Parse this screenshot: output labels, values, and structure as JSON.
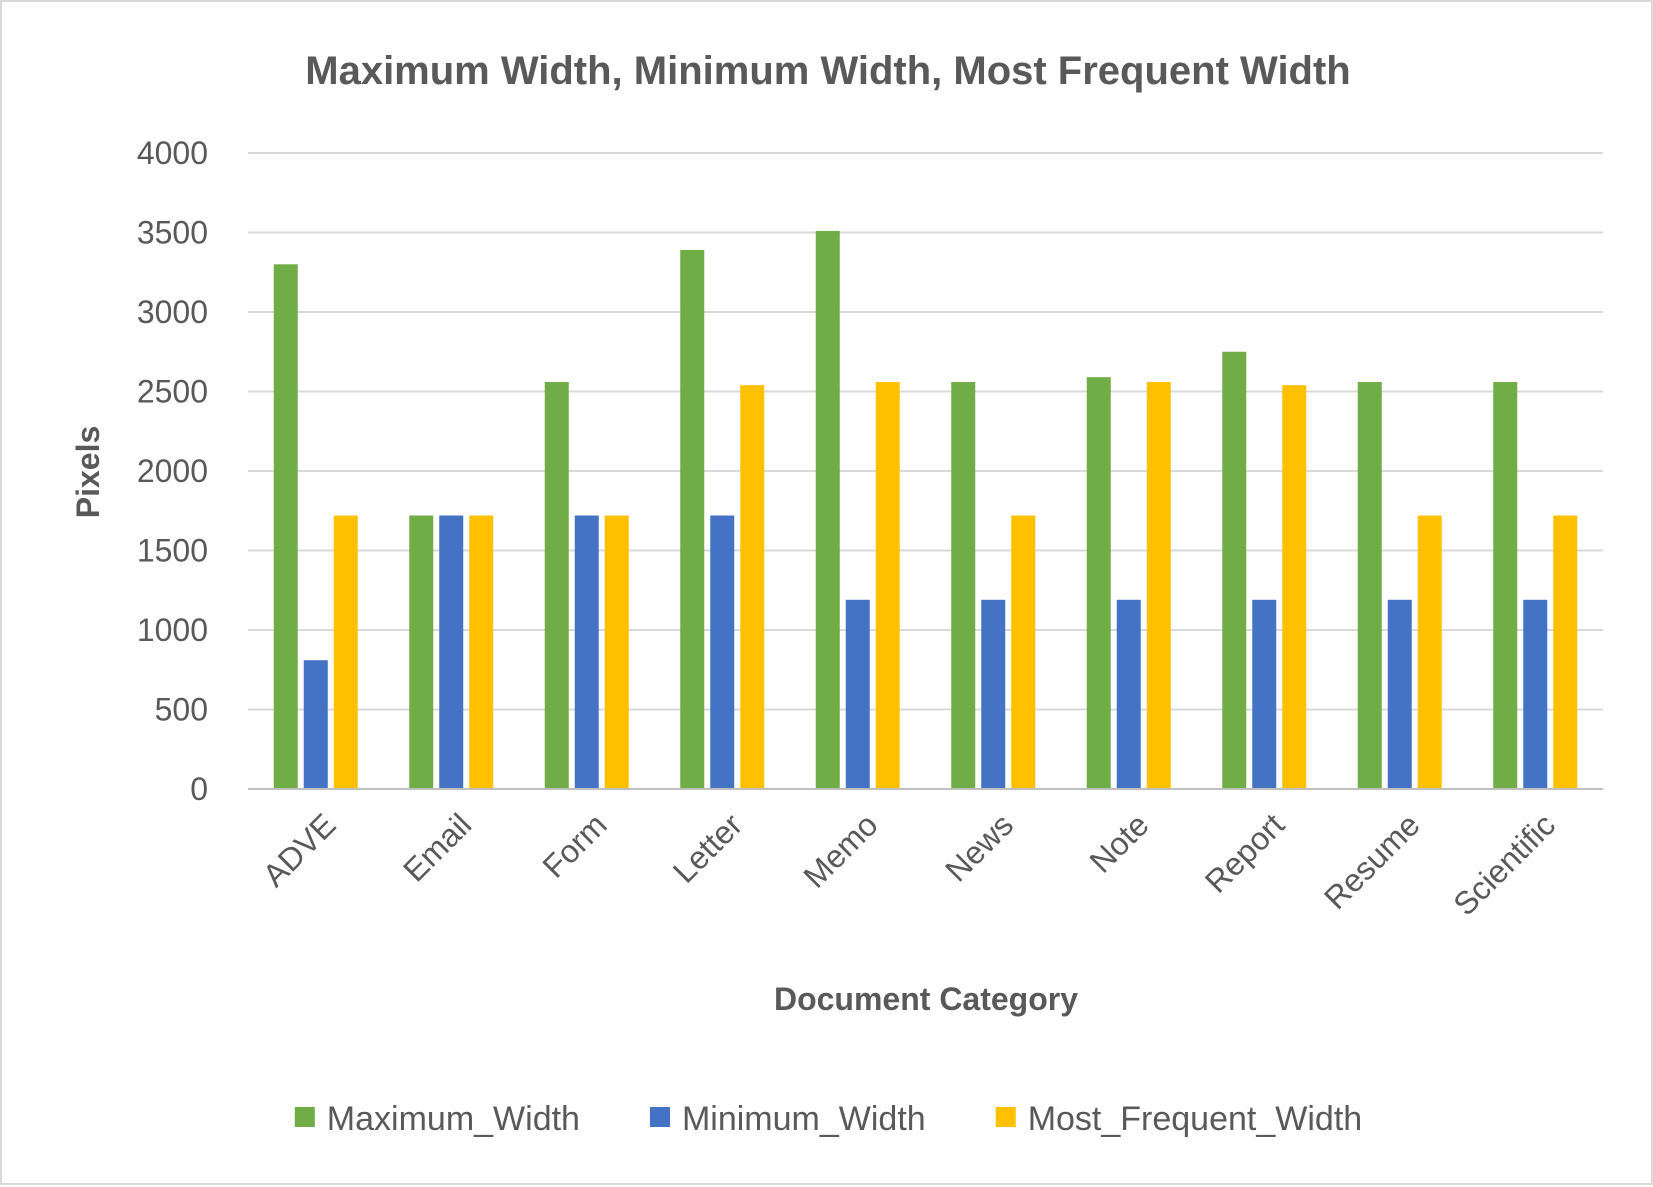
{
  "chart_data": {
    "type": "bar",
    "title": "Maximum Width, Minimum Width, Most Frequent Width",
    "xlabel": "Document Category",
    "ylabel": "Pixels",
    "ylim": [
      0,
      4000
    ],
    "yticks": [
      0,
      500,
      1000,
      1500,
      2000,
      2500,
      3000,
      3500,
      4000
    ],
    "grid": true,
    "legend_position": "bottom",
    "categories": [
      "ADVE",
      "Email",
      "Form",
      "Letter",
      "Memo",
      "News",
      "Note",
      "Report",
      "Resume",
      "Scientific"
    ],
    "series": [
      {
        "name": "Maximum_Width",
        "color": "#70ad47",
        "values": [
          3300,
          1720,
          2560,
          3390,
          3510,
          2560,
          2590,
          2750,
          2560,
          2560
        ]
      },
      {
        "name": "Minimum_Width",
        "color": "#4472c4",
        "values": [
          810,
          1720,
          1720,
          1720,
          1190,
          1190,
          1190,
          1190,
          1190,
          1190
        ]
      },
      {
        "name": "Most_Frequent_Width",
        "color": "#ffc000",
        "values": [
          1720,
          1720,
          1720,
          2540,
          2560,
          1720,
          2560,
          2540,
          1720,
          1720
        ]
      }
    ]
  }
}
